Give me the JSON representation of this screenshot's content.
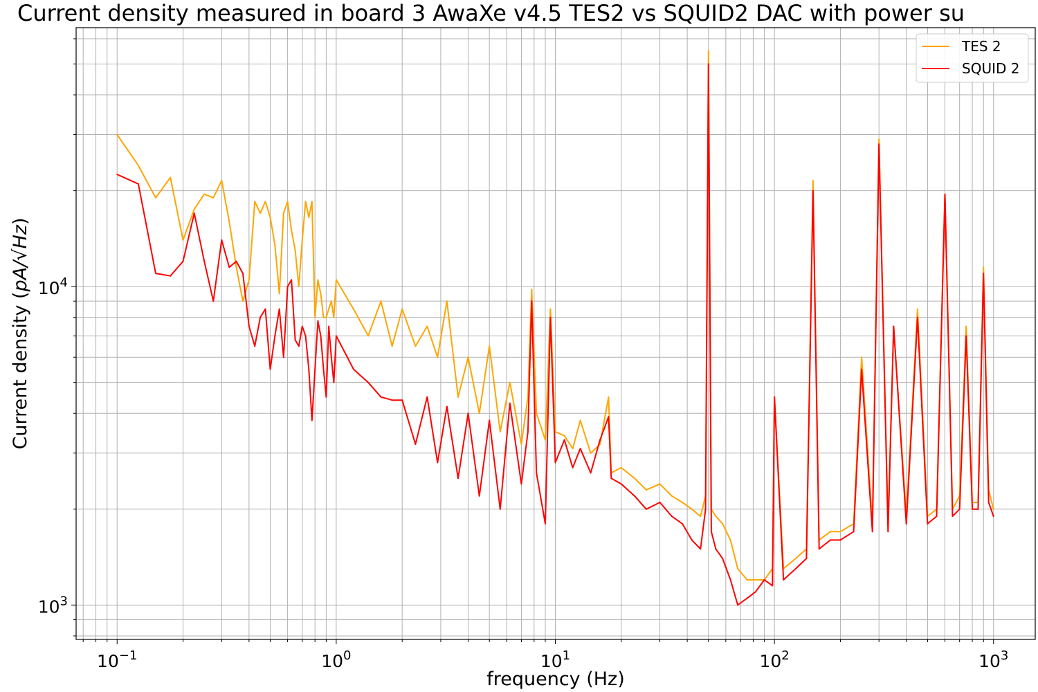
{
  "chart_data": {
    "type": "line",
    "title": "Current density measured in board 3 AwaXe v4.5 TES2 vs SQUID2 DAC with power su",
    "xlabel": "frequency (Hz)",
    "ylabel_prefix": "Current density (",
    "ylabel_math": "pA/√Hz",
    "ylabel_suffix": ")",
    "x_scale": "log",
    "y_scale": "log",
    "xlim": [
      0.065,
      1550
    ],
    "ylim": [
      780,
      65000
    ],
    "grid": true,
    "legend_position": "top-right",
    "x_ticks": [
      {
        "value": 0.1,
        "base": "10",
        "exp": "−1"
      },
      {
        "value": 1,
        "base": "10",
        "exp": "0"
      },
      {
        "value": 10,
        "base": "10",
        "exp": "1"
      },
      {
        "value": 100,
        "base": "10",
        "exp": "2"
      },
      {
        "value": 1000,
        "base": "10",
        "exp": "3"
      }
    ],
    "y_ticks": [
      {
        "value": 1000,
        "base": "10",
        "exp": "3"
      },
      {
        "value": 10000,
        "base": "10",
        "exp": "4"
      }
    ],
    "series": [
      {
        "name": "TES 2",
        "color": "#ffa500",
        "x": [
          0.1,
          0.125,
          0.15,
          0.175,
          0.2,
          0.225,
          0.25,
          0.275,
          0.3,
          0.325,
          0.35,
          0.375,
          0.4,
          0.425,
          0.45,
          0.475,
          0.5,
          0.525,
          0.55,
          0.575,
          0.6,
          0.625,
          0.65,
          0.675,
          0.7,
          0.725,
          0.75,
          0.775,
          0.8,
          0.825,
          0.85,
          0.875,
          0.9,
          0.925,
          0.95,
          0.975,
          1.0,
          1.2,
          1.4,
          1.6,
          1.8,
          2.0,
          2.3,
          2.6,
          2.9,
          3.2,
          3.6,
          4.0,
          4.5,
          5.0,
          5.6,
          6.2,
          7.0,
          7.5,
          7.8,
          8.2,
          9.0,
          9.5,
          10.0,
          11.0,
          12.0,
          13.0,
          14.5,
          16.0,
          17.5,
          18.0,
          20.0,
          23.0,
          26.0,
          30.0,
          34.0,
          38.0,
          42.0,
          46.0,
          48.5,
          50.0,
          51.5,
          54.0,
          58.0,
          63.0,
          68.0,
          75.0,
          82.0,
          90.0,
          98.0,
          100.0,
          110.0,
          125.0,
          140.0,
          150.0,
          160.0,
          180.0,
          200.0,
          230.0,
          250.0,
          280.0,
          300.0,
          330.0,
          350.0,
          400.0,
          450.0,
          500.0,
          550.0,
          600.0,
          650.0,
          700.0,
          750.0,
          800.0,
          850.0,
          900.0,
          950.0,
          1000.0
        ],
        "values": [
          30000,
          24000,
          19000,
          22000,
          14000,
          17500,
          19500,
          19000,
          21500,
          16000,
          11500,
          9000,
          10500,
          18500,
          17000,
          18500,
          16500,
          13500,
          9500,
          17000,
          18500,
          15000,
          13000,
          10000,
          14000,
          18500,
          16500,
          18500,
          8000,
          10500,
          9500,
          8000,
          8000,
          8500,
          9000,
          8000,
          10500,
          8500,
          7000,
          9000,
          6500,
          8500,
          6500,
          7500,
          6000,
          9000,
          4500,
          6000,
          4000,
          6500,
          3500,
          5000,
          3200,
          4500,
          9800,
          4000,
          3300,
          8500,
          3500,
          3400,
          3100,
          3800,
          3000,
          3200,
          4500,
          2600,
          2700,
          2500,
          2300,
          2400,
          2200,
          2100,
          2000,
          1900,
          2200,
          55000,
          2000,
          1900,
          1800,
          1600,
          1300,
          1200,
          1200,
          1200,
          1300,
          4500,
          1300,
          1400,
          1500,
          21500,
          1600,
          1700,
          1700,
          1800,
          6000,
          1800,
          29000,
          1800,
          7500,
          1900,
          8500,
          1900,
          2000,
          19500,
          2000,
          2200,
          7500,
          2100,
          2100,
          11500,
          2300,
          2000
        ]
      },
      {
        "name": "SQUID 2",
        "color": "#ff0000",
        "x": [
          0.1,
          0.125,
          0.15,
          0.175,
          0.2,
          0.225,
          0.25,
          0.275,
          0.3,
          0.325,
          0.35,
          0.375,
          0.4,
          0.425,
          0.45,
          0.475,
          0.5,
          0.525,
          0.55,
          0.575,
          0.6,
          0.625,
          0.65,
          0.675,
          0.7,
          0.725,
          0.75,
          0.775,
          0.8,
          0.825,
          0.85,
          0.875,
          0.9,
          0.925,
          0.95,
          0.975,
          1.0,
          1.2,
          1.4,
          1.6,
          1.8,
          2.0,
          2.3,
          2.6,
          2.9,
          3.2,
          3.6,
          4.0,
          4.5,
          5.0,
          5.6,
          6.2,
          7.0,
          7.5,
          7.8,
          8.2,
          9.0,
          9.5,
          10.0,
          11.0,
          12.0,
          13.0,
          14.5,
          16.0,
          17.5,
          18.0,
          20.0,
          23.0,
          26.0,
          30.0,
          34.0,
          38.0,
          42.0,
          46.0,
          48.5,
          50.0,
          51.5,
          54.0,
          58.0,
          63.0,
          68.0,
          75.0,
          82.0,
          90.0,
          98.0,
          100.0,
          110.0,
          125.0,
          140.0,
          150.0,
          160.0,
          180.0,
          200.0,
          230.0,
          250.0,
          280.0,
          300.0,
          330.0,
          350.0,
          400.0,
          450.0,
          500.0,
          550.0,
          600.0,
          650.0,
          700.0,
          750.0,
          800.0,
          850.0,
          900.0,
          950.0,
          1000.0
        ],
        "values": [
          22500,
          21000,
          11000,
          10800,
          12000,
          17000,
          12000,
          9000,
          14000,
          11500,
          12000,
          11000,
          7500,
          6500,
          8000,
          8500,
          5500,
          7000,
          8500,
          6000,
          10000,
          10500,
          6800,
          6500,
          7500,
          7000,
          5500,
          3800,
          5500,
          7800,
          7000,
          5500,
          4500,
          7500,
          6000,
          5000,
          7000,
          5500,
          5000,
          4500,
          4400,
          4400,
          3200,
          4500,
          2800,
          4200,
          2500,
          4000,
          2200,
          3800,
          2000,
          4300,
          2400,
          3500,
          9000,
          2600,
          1800,
          8000,
          2800,
          3300,
          2700,
          3100,
          2600,
          3300,
          3900,
          2500,
          2400,
          2200,
          2000,
          2100,
          1900,
          1800,
          1600,
          1500,
          2000,
          50000,
          1700,
          1500,
          1400,
          1200,
          1000,
          1050,
          1100,
          1200,
          1150,
          4500,
          1200,
          1300,
          1400,
          20000,
          1500,
          1600,
          1600,
          1700,
          5500,
          1700,
          28000,
          1700,
          7500,
          1800,
          8000,
          1800,
          1900,
          19500,
          1900,
          2000,
          7000,
          2000,
          2000,
          11000,
          2100,
          1900
        ]
      }
    ]
  }
}
